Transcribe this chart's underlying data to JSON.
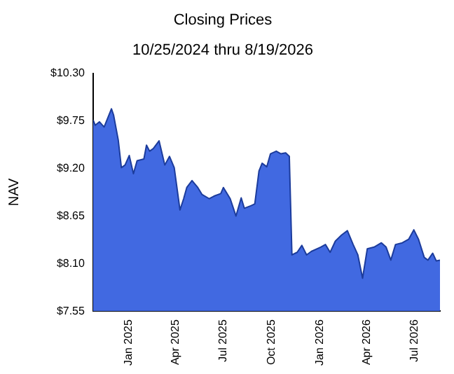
{
  "chart_data": {
    "type": "area",
    "title": "Closing Prices",
    "subtitle": "10/25/2024 thru 8/19/2026",
    "ylabel": "NAV",
    "x": [
      "2024-10-25",
      "2024-10-29",
      "2024-11-06",
      "2024-11-15",
      "2024-11-29",
      "2024-12-03",
      "2024-12-12",
      "2024-12-18",
      "2024-12-25",
      "2025-01-02",
      "2025-01-10",
      "2025-01-17",
      "2025-01-30",
      "2025-02-04",
      "2025-02-10",
      "2025-02-17",
      "2025-02-28",
      "2025-03-11",
      "2025-03-20",
      "2025-03-29",
      "2025-04-09",
      "2025-04-16",
      "2025-04-22",
      "2025-05-02",
      "2025-05-13",
      "2025-05-21",
      "2025-06-04",
      "2025-06-13",
      "2025-06-26",
      "2025-07-01",
      "2025-07-14",
      "2025-07-25",
      "2025-08-04",
      "2025-08-10",
      "2025-08-23",
      "2025-08-30",
      "2025-09-07",
      "2025-09-13",
      "2025-09-22",
      "2025-09-29",
      "2025-10-10",
      "2025-10-19",
      "2025-10-28",
      "2025-11-04",
      "2025-11-09",
      "2025-11-19",
      "2025-11-28",
      "2025-12-07",
      "2025-12-16",
      "2026-01-03",
      "2026-01-12",
      "2026-01-21",
      "2026-01-31",
      "2026-02-12",
      "2026-02-23",
      "2026-03-06",
      "2026-03-15",
      "2026-03-24",
      "2026-04-02",
      "2026-04-15",
      "2026-04-29",
      "2026-05-08",
      "2026-05-17",
      "2026-05-26",
      "2026-06-08",
      "2026-06-20",
      "2026-06-30",
      "2026-07-09",
      "2026-07-20",
      "2026-07-27",
      "2026-08-05",
      "2026-08-12",
      "2026-08-19"
    ],
    "series": [
      {
        "color": "#4169e1",
        "values": [
          9.76,
          9.7,
          9.74,
          9.68,
          9.89,
          9.82,
          9.53,
          9.21,
          9.24,
          9.35,
          9.14,
          9.29,
          9.31,
          9.47,
          9.4,
          9.43,
          9.52,
          9.24,
          9.34,
          9.21,
          8.72,
          8.85,
          8.98,
          9.06,
          8.98,
          8.9,
          8.85,
          8.88,
          8.91,
          8.98,
          8.85,
          8.65,
          8.86,
          8.74,
          8.77,
          8.79,
          9.17,
          9.26,
          9.22,
          9.37,
          9.4,
          9.37,
          9.38,
          9.34,
          8.2,
          8.23,
          8.31,
          8.2,
          8.24,
          8.29,
          8.32,
          8.23,
          8.36,
          8.43,
          8.48,
          8.32,
          8.2,
          7.93,
          8.27,
          8.29,
          8.34,
          8.29,
          8.14,
          8.32,
          8.34,
          8.38,
          8.49,
          8.38,
          8.17,
          8.14,
          8.22,
          8.13,
          8.14
        ]
      }
    ],
    "xlim": [
      "2024-10-25",
      "2026-08-19"
    ],
    "xticks": [
      {
        "value": "2025-01-01",
        "label": "Jan 2025"
      },
      {
        "value": "2025-04-01",
        "label": "Apr 2025"
      },
      {
        "value": "2025-07-01",
        "label": "Jul 2025"
      },
      {
        "value": "2025-10-01",
        "label": "Oct 2025"
      },
      {
        "value": "2026-01-01",
        "label": "Jan 2026"
      },
      {
        "value": "2026-04-01",
        "label": "Apr 2026"
      },
      {
        "value": "2026-07-01",
        "label": "Jul 2026"
      }
    ],
    "ylim": [
      7.55,
      10.3
    ],
    "yticks": [
      {
        "value": 7.55,
        "label": "$7.55"
      },
      {
        "value": 8.1,
        "label": "$8.10"
      },
      {
        "value": 8.65,
        "label": "$8.65"
      },
      {
        "value": 9.2,
        "label": "$9.20"
      },
      {
        "value": 9.75,
        "label": "$9.75"
      },
      {
        "value": 10.3,
        "label": "$10.30"
      }
    ],
    "grid": false,
    "legend": false
  }
}
